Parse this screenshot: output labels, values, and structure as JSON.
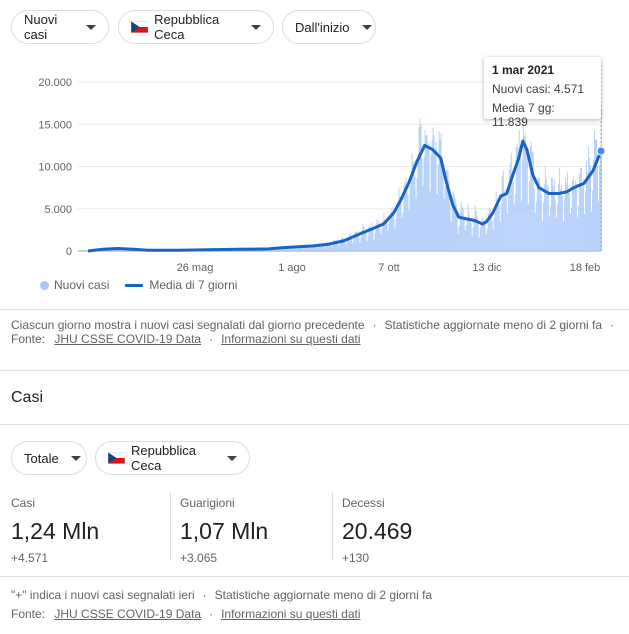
{
  "filters": {
    "metric": "Nuovi casi",
    "country": "Repubblica Ceca",
    "range": "Dall'inizio"
  },
  "tooltip": {
    "date": "1 mar 2021",
    "new_cases": "Nuovi casi: 4.571",
    "avg": "Media 7 gg: 11.839"
  },
  "legend": {
    "bars": "Nuovi casi",
    "line": "Media di 7 giorni"
  },
  "chart_data": {
    "type": "bar",
    "ylim": [
      0,
      20000
    ],
    "y_ticks": [
      0,
      5000,
      10000,
      15000,
      20000
    ],
    "y_tick_labels": [
      "0",
      "5.000",
      "10.000",
      "15.000",
      "20.000"
    ],
    "x_tick_labels": [
      "26 mag",
      "1 ago",
      "7 ott",
      "13 dic",
      "18 feb"
    ],
    "series": [
      {
        "name": "Nuovi casi",
        "type": "bar"
      },
      {
        "name": "Media di 7 giorni",
        "type": "line",
        "points": [
          [
            0,
            0
          ],
          [
            15,
            200
          ],
          [
            30,
            300
          ],
          [
            45,
            200
          ],
          [
            60,
            100
          ],
          [
            90,
            100
          ],
          [
            120,
            150
          ],
          [
            150,
            200
          ],
          [
            180,
            250
          ],
          [
            195,
            400
          ],
          [
            210,
            500
          ],
          [
            225,
            600
          ],
          [
            240,
            800
          ],
          [
            255,
            1200
          ],
          [
            265,
            1700
          ],
          [
            275,
            2200
          ],
          [
            285,
            2700
          ],
          [
            295,
            3200
          ],
          [
            305,
            4500
          ],
          [
            312,
            6000
          ],
          [
            320,
            8000
          ],
          [
            328,
            10500
          ],
          [
            336,
            12500
          ],
          [
            344,
            12000
          ],
          [
            352,
            11000
          ],
          [
            358,
            8000
          ],
          [
            364,
            5500
          ],
          [
            370,
            4000
          ],
          [
            378,
            3800
          ],
          [
            386,
            3600
          ],
          [
            394,
            3200
          ],
          [
            398,
            3500
          ],
          [
            404,
            4500
          ],
          [
            412,
            6500
          ],
          [
            418,
            6800
          ],
          [
            424,
            9000
          ],
          [
            430,
            11000
          ],
          [
            434,
            13000
          ],
          [
            438,
            12000
          ],
          [
            444,
            9000
          ],
          [
            450,
            7500
          ],
          [
            460,
            6800
          ],
          [
            470,
            6800
          ],
          [
            478,
            7000
          ],
          [
            485,
            7500
          ],
          [
            495,
            8000
          ],
          [
            504,
            9500
          ],
          [
            512,
            11839
          ]
        ]
      }
    ],
    "n_days": 512
  },
  "notes": {
    "chart_note": "Ciascun giorno mostra i nuovi casi segnalati dal giorno precedente",
    "sep": "·",
    "updated": "Statistiche aggiornate meno di 2 giorni fa",
    "source_label": "Fonte:",
    "source": "JHU CSSE COVID-19 Data",
    "info": "Informazioni su questi dati"
  },
  "cases_section": {
    "title": "Casi",
    "filter_total": "Totale",
    "filter_country": "Repubblica Ceca",
    "stats": [
      {
        "label": "Casi",
        "value": "1,24 Mln",
        "delta": "+4.571"
      },
      {
        "label": "Guarigioni",
        "value": "1,07 Mln",
        "delta": "+3.065"
      },
      {
        "label": "Decessi",
        "value": "20.469",
        "delta": "+130"
      }
    ],
    "note": "\"+\" indica i nuovi casi segnalati ieri",
    "sep": "·",
    "updated": "Statistiche aggiornate meno di 2 giorni fa",
    "source_label": "Fonte:",
    "source": "JHU CSSE COVID-19 Data",
    "info": "Informazioni su questi dati"
  },
  "colors": {
    "bar": "#a8c7fa",
    "line": "#1a62c4"
  }
}
